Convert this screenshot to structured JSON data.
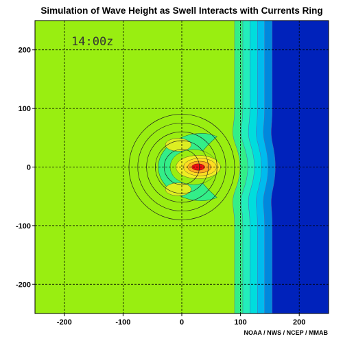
{
  "chart_data": {
    "type": "heatmap",
    "title": "Simulation of Wave Height as Swell Interacts with Currents Ring",
    "annotation": "14:00z",
    "credit": "NOAA / NWS / NCEP / MMAB",
    "xlabel": "",
    "ylabel": "",
    "xlim": [
      -250,
      250
    ],
    "ylim": [
      -250,
      250
    ],
    "x_ticks": [
      -200,
      -100,
      0,
      100,
      200
    ],
    "y_ticks": [
      -200,
      -100,
      0,
      100,
      200
    ],
    "grid": true,
    "ring": {
      "center": [
        0,
        0
      ],
      "radii": [
        30,
        45,
        60,
        75,
        90
      ]
    },
    "bands": [
      {
        "x_from": -250,
        "x_to": 90,
        "color": "#99ee11"
      },
      {
        "x_from": 90,
        "x_to": 104,
        "color": "#33ee88"
      },
      {
        "x_from": 104,
        "x_to": 116,
        "color": "#22eebb"
      },
      {
        "x_from": 116,
        "x_to": 129,
        "color": "#00dddd"
      },
      {
        "x_from": 129,
        "x_to": 141,
        "color": "#00bbee"
      },
      {
        "x_from": 141,
        "x_to": 154,
        "color": "#0088dd"
      },
      {
        "x_from": 154,
        "x_to": 250,
        "color": "#0022bb"
      }
    ],
    "features": [
      {
        "kind": "green-crescent",
        "center": [
          20,
          0
        ],
        "color": "#33ee88"
      },
      {
        "kind": "yellow-lobe",
        "center": [
          -6,
          38
        ],
        "color": "#ddee22"
      },
      {
        "kind": "yellow-lobe",
        "center": [
          -6,
          -38
        ],
        "color": "#ddee22"
      },
      {
        "kind": "yellow-core",
        "center": [
          28,
          0
        ],
        "color": "#eeee22"
      },
      {
        "kind": "orange",
        "center": [
          28,
          0
        ],
        "color": "#ffaa22"
      },
      {
        "kind": "red",
        "center": [
          28,
          0
        ],
        "color": "#ee1111"
      }
    ]
  }
}
